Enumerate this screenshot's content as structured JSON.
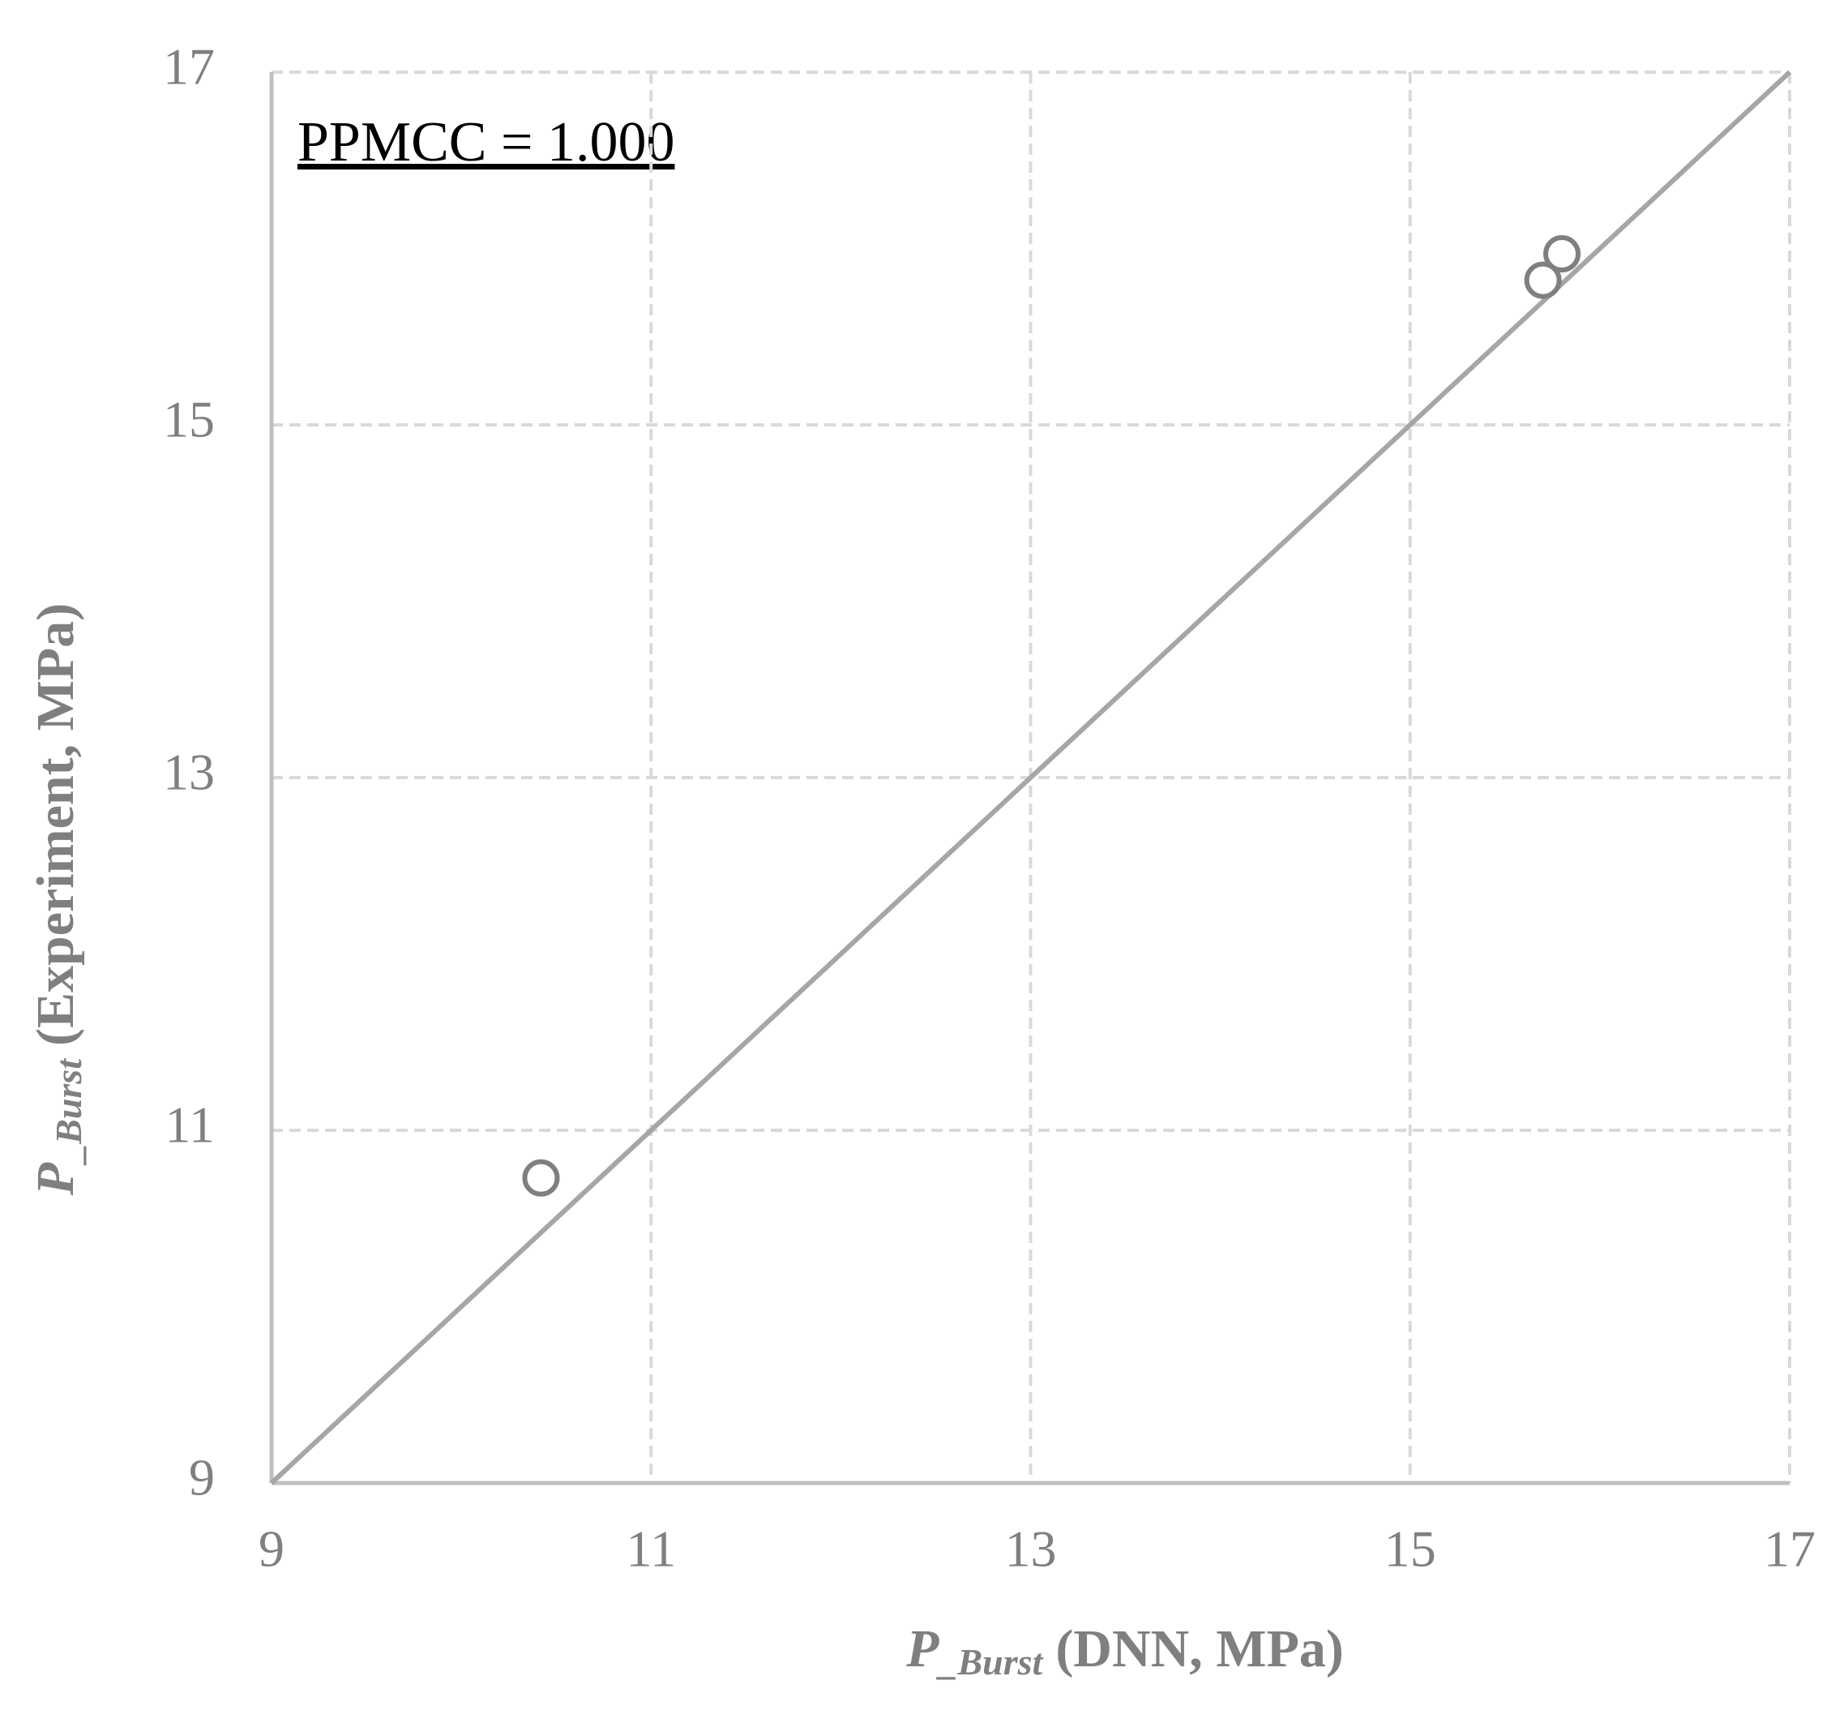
{
  "chart_data": {
    "type": "scatter",
    "xlabel": {
      "symbol": "P",
      "subscript": "_Burst",
      "text": "(DNN, MPa)"
    },
    "ylabel": {
      "symbol": "P",
      "subscript": "_Burst",
      "text": "(Experiment, MPa)"
    },
    "annotation": "PPMCC = 1.000",
    "series": [
      {
        "color": "#7f7f7f",
        "x": [
          10.42,
          15.7,
          15.8
        ],
        "values": [
          10.73,
          15.82,
          15.97
        ]
      }
    ],
    "reference_line": {
      "color": "#a6a6a6",
      "x": [
        9,
        17
      ],
      "values": [
        9,
        17
      ]
    },
    "xlim": [
      9,
      17
    ],
    "ylim": [
      9,
      17
    ],
    "xticks": [
      9,
      11,
      13,
      15,
      17
    ],
    "yticks": [
      9,
      11,
      13,
      15,
      17
    ],
    "grid": true
  }
}
